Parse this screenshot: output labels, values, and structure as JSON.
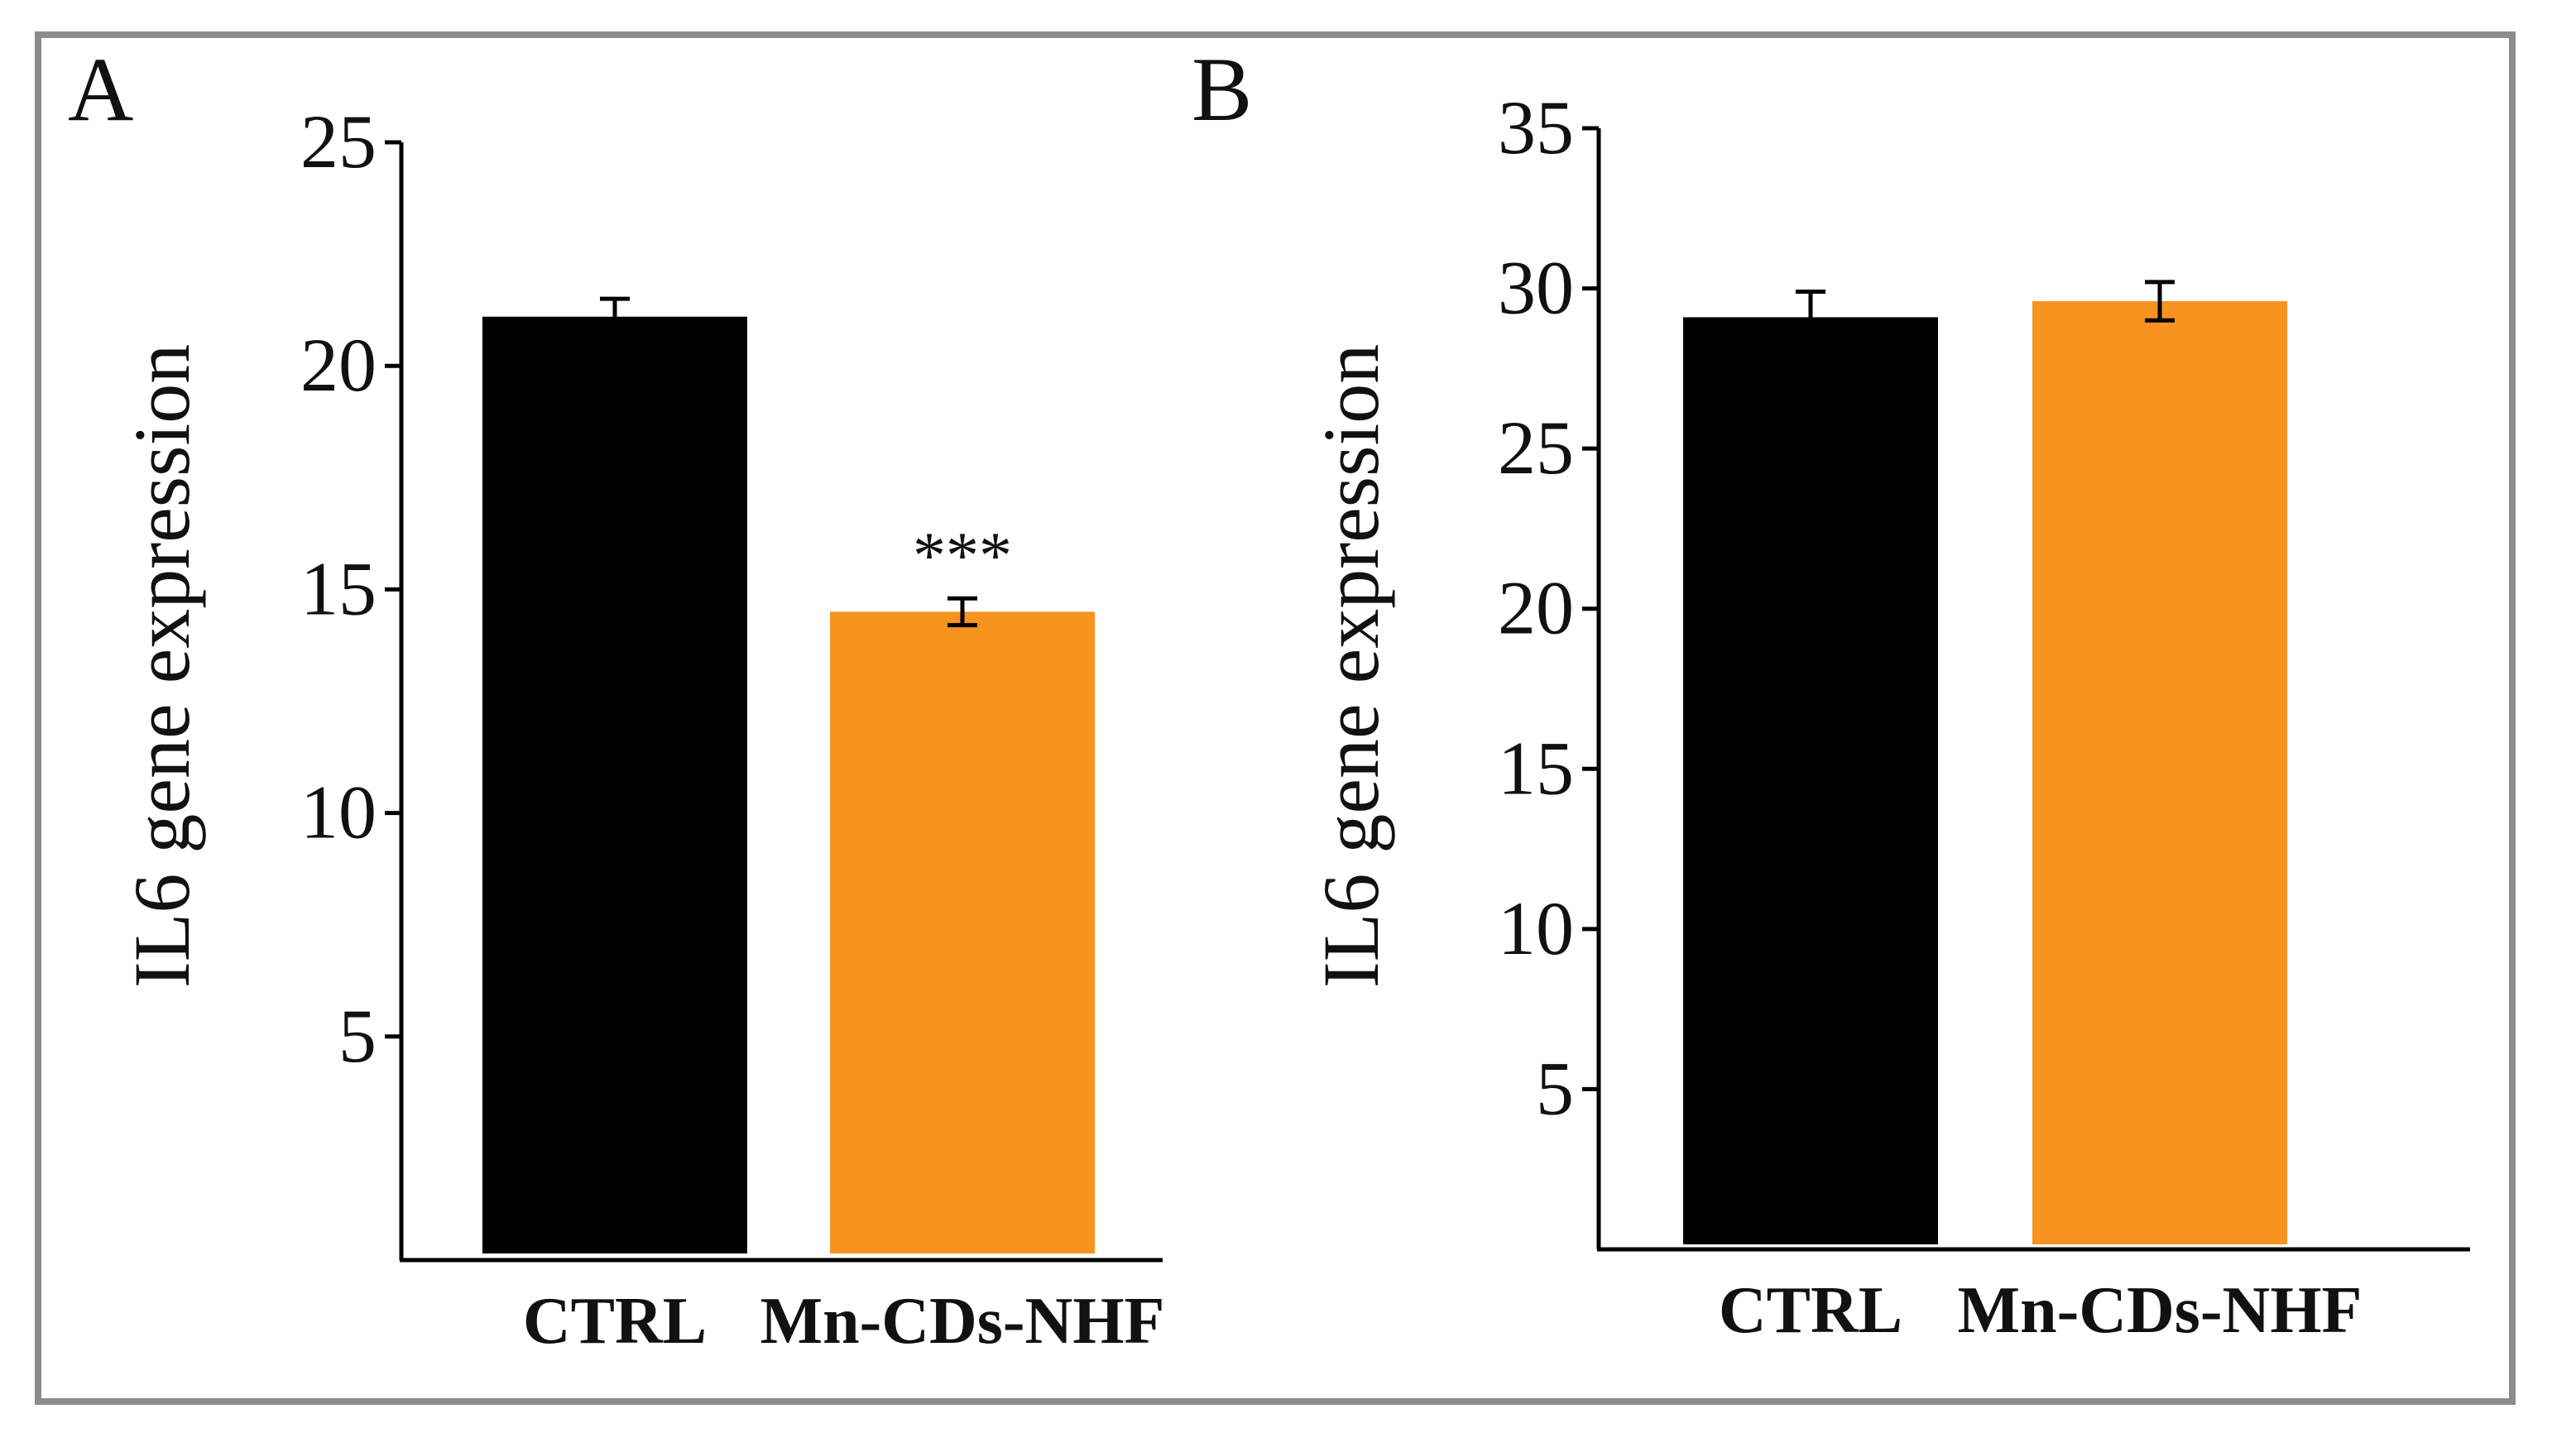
{
  "figure": {
    "border_color": "#8c8c8c"
  },
  "chart_data": [
    {
      "type": "bar",
      "panel_label": "A",
      "title": "",
      "xlabel": "",
      "ylabel": "IL6 gene expression",
      "ylim": [
        0,
        25
      ],
      "yticks": [
        5,
        10,
        15,
        20,
        25
      ],
      "categories": [
        "CTRL",
        "Mn-CDs-NHF"
      ],
      "values": [
        21.1,
        14.5
      ],
      "errors": [
        0.4,
        0.3
      ],
      "colors": [
        "#000000",
        "#f7931e"
      ],
      "annotations": [
        "",
        "***"
      ]
    },
    {
      "type": "bar",
      "panel_label": "B",
      "title": "",
      "xlabel": "",
      "ylabel": "IL6 gene expression",
      "ylim": [
        0,
        35
      ],
      "yticks": [
        5,
        10,
        15,
        20,
        25,
        30,
        35
      ],
      "categories": [
        "CTRL",
        "Mn-CDs-NHF"
      ],
      "values": [
        29.1,
        29.6
      ],
      "errors": [
        0.8,
        0.6
      ],
      "colors": [
        "#000000",
        "#f7931e"
      ],
      "annotations": [
        "",
        ""
      ]
    }
  ]
}
